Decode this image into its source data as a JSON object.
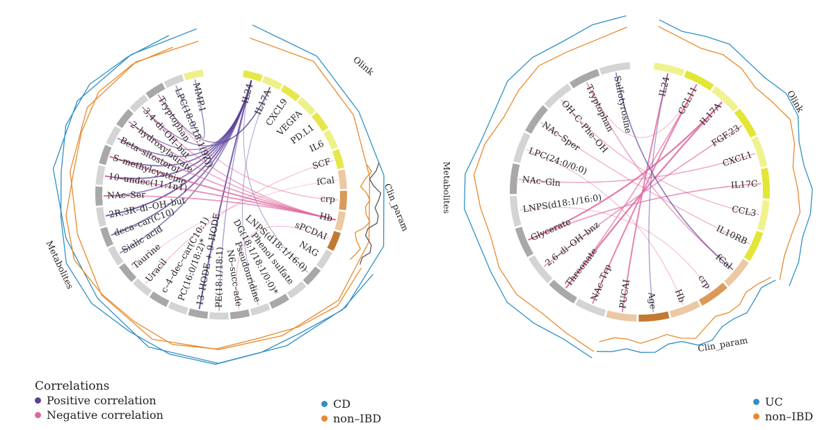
{
  "legend": {
    "title": "Correlations",
    "positive_label": "Positive correlation",
    "negative_label": "Negative correlation",
    "positive_color": "#5b3f99",
    "negative_color": "#e0689f"
  },
  "colors": {
    "cd": "#2f8fc4",
    "non_ibd": "#e8892a",
    "uc": "#2f8fc4",
    "clin_line": "#555555"
  },
  "chart_data": [
    {
      "type": "chord",
      "title": "",
      "cohort_legend": [
        {
          "label": "CD",
          "color": "#2f8fc4"
        },
        {
          "label": "non–IBD",
          "color": "#e8892a"
        }
      ],
      "group_labels": {
        "olink": "Olink",
        "clin": "Clin_param",
        "metab": "Metabolites"
      },
      "sectors": [
        {
          "label": "IL24",
          "group": "olink",
          "color": "#e6e84a"
        },
        {
          "label": "IL17A",
          "group": "olink",
          "color": "#eef08a"
        },
        {
          "label": "CXCL9",
          "group": "olink",
          "color": "#e6e84a"
        },
        {
          "label": "VEGFA",
          "group": "olink",
          "color": "#eef08a"
        },
        {
          "label": "PD.L1",
          "group": "olink",
          "color": "#e6e84a"
        },
        {
          "label": "IL6",
          "group": "olink",
          "color": "#eef08a"
        },
        {
          "label": "SCF",
          "group": "olink",
          "color": "#e6e84a"
        },
        {
          "label": "fCal",
          "group": "clin",
          "color": "#ecc9a3"
        },
        {
          "label": "crp",
          "group": "clin",
          "color": "#d99a5a"
        },
        {
          "label": "Hb",
          "group": "clin",
          "color": "#ecc9a3"
        },
        {
          "label": "sPCDAI",
          "group": "clin",
          "color": "#c27a32"
        },
        {
          "label": "NAG",
          "group": "metab",
          "color": "#d4d4d4"
        },
        {
          "label": "LNPS(d18:1/16:0)",
          "group": "metab",
          "color": "#a8a8a8"
        },
        {
          "label": "Phenol sulfate",
          "group": "metab",
          "color": "#d4d4d4"
        },
        {
          "label": "DG(18:1/18:1/0:0)*",
          "group": "metab",
          "color": "#a8a8a8"
        },
        {
          "label": "Pseudouridine",
          "group": "metab",
          "color": "#d4d4d4"
        },
        {
          "label": "N6–succ–ade",
          "group": "metab",
          "color": "#a8a8a8"
        },
        {
          "label": "PE(18:1/18:1)",
          "group": "metab",
          "color": "#d4d4d4"
        },
        {
          "label": "13–HODE + 9–HODE",
          "group": "metab",
          "color": "#a8a8a8"
        },
        {
          "label": "PC(16:0/18:2)*",
          "group": "metab",
          "color": "#d4d4d4"
        },
        {
          "label": "c–4–dec–car(C10:1)",
          "group": "metab",
          "color": "#a8a8a8"
        },
        {
          "label": "Uracil",
          "group": "metab",
          "color": "#d4d4d4"
        },
        {
          "label": "Taurine",
          "group": "metab",
          "color": "#a8a8a8"
        },
        {
          "label": "Sialic acid",
          "group": "metab",
          "color": "#d4d4d4"
        },
        {
          "label": "deca–car(C10)",
          "group": "metab",
          "color": "#a8a8a8"
        },
        {
          "label": "2R,3R–di–OH–but",
          "group": "metab",
          "color": "#d4d4d4"
        },
        {
          "label": "NAc–Ser",
          "group": "metab",
          "color": "#a8a8a8"
        },
        {
          "label": "10–undec(11:1n1)",
          "group": "metab",
          "color": "#d4d4d4"
        },
        {
          "label": "S–methylcysteine",
          "group": "metab",
          "color": "#a8a8a8"
        },
        {
          "label": "Beta–sitosterol",
          "group": "metab",
          "color": "#d4d4d4"
        },
        {
          "label": "2–hydroxylaurate",
          "group": "metab",
          "color": "#a8a8a8"
        },
        {
          "label": "3,4–di–OH–but",
          "group": "metab",
          "color": "#d4d4d4"
        },
        {
          "label": "Tryptophan",
          "group": "metab",
          "color": "#a8a8a8"
        },
        {
          "label": "LPC(18:0/18:1(9Z))",
          "group": "metab",
          "color": "#d4d4d4"
        },
        {
          "label": "MMP.1",
          "group": "olink",
          "color": "#eef08a"
        }
      ],
      "links": [
        {
          "source": "IL24",
          "target": "2R,3R–di–OH–but",
          "sign": "positive",
          "strength": 0.8
        },
        {
          "source": "IL24",
          "target": "10–undec(11:1n1)",
          "sign": "positive",
          "strength": 0.7
        },
        {
          "source": "IL24",
          "target": "S–methylcysteine",
          "sign": "positive",
          "strength": 0.7
        },
        {
          "source": "IL24",
          "target": "deca–car(C10)",
          "sign": "positive",
          "strength": 0.7
        },
        {
          "source": "IL24",
          "target": "Sialic acid",
          "sign": "positive",
          "strength": 0.6
        },
        {
          "source": "IL24",
          "target": "Beta–sitosterol",
          "sign": "positive",
          "strength": 0.6
        },
        {
          "source": "IL24",
          "target": "NAc–Ser",
          "sign": "positive",
          "strength": 0.6
        },
        {
          "source": "IL24",
          "target": "13–HODE + 9–HODE",
          "sign": "positive",
          "strength": 0.8
        },
        {
          "source": "IL24",
          "target": "2–hydroxylaurate",
          "sign": "positive",
          "strength": 0.5
        },
        {
          "source": "IL17A",
          "target": "3,4–di–OH–but",
          "sign": "positive",
          "strength": 0.5
        },
        {
          "source": "IL17A",
          "target": "Tryptophan",
          "sign": "positive",
          "strength": 0.5
        },
        {
          "source": "MMP.1",
          "target": "LPC(18:0/18:1(9Z))",
          "sign": "positive",
          "strength": 0.5
        },
        {
          "source": "IL24",
          "target": "PE(18:1/18:1)",
          "sign": "positive",
          "strength": 0.4
        },
        {
          "source": "IL24",
          "target": "LNPS(d18:1/16:0)",
          "sign": "positive",
          "strength": 0.3
        },
        {
          "source": "IL17A",
          "target": "Pseudouridine",
          "sign": "positive",
          "strength": 0.3
        },
        {
          "source": "Hb",
          "target": "S–methylcysteine",
          "sign": "negative",
          "strength": 0.8
        },
        {
          "source": "Hb",
          "target": "10–undec(11:1n1)",
          "sign": "negative",
          "strength": 0.7
        },
        {
          "source": "Hb",
          "target": "NAc–Ser",
          "sign": "negative",
          "strength": 0.6
        },
        {
          "source": "Hb",
          "target": "Beta–sitosterol",
          "sign": "negative",
          "strength": 0.6
        },
        {
          "source": "Hb",
          "target": "2–hydroxylaurate",
          "sign": "negative",
          "strength": 0.5
        },
        {
          "source": "Hb",
          "target": "3,4–di–OH–but",
          "sign": "negative",
          "strength": 0.5
        },
        {
          "source": "crp",
          "target": "Tryptophan",
          "sign": "negative",
          "strength": 0.4
        },
        {
          "source": "SCF",
          "target": "Uracil",
          "sign": "negative",
          "strength": 0.3
        },
        {
          "source": "fCal",
          "target": "Taurine",
          "sign": "negative",
          "strength": 0.2
        },
        {
          "source": "sPCDAI",
          "target": "N6–succ–ade",
          "sign": "negative",
          "strength": 0.3
        }
      ]
    },
    {
      "type": "chord",
      "title": "",
      "cohort_legend": [
        {
          "label": "UC",
          "color": "#2f8fc4"
        },
        {
          "label": "non–IBD",
          "color": "#e8892a"
        }
      ],
      "group_labels": {
        "olink": "Olink",
        "clin": "Clin_param",
        "metab": "Metabolites"
      },
      "sectors": [
        {
          "label": "IL24",
          "group": "olink",
          "color": "#f0f28f"
        },
        {
          "label": "CCL11",
          "group": "olink",
          "color": "#e3e635"
        },
        {
          "label": "IL17A",
          "group": "olink",
          "color": "#f0f28f"
        },
        {
          "label": "FGF.23",
          "group": "olink",
          "color": "#e3e635"
        },
        {
          "label": "CXCL1",
          "group": "olink",
          "color": "#f0f28f"
        },
        {
          "label": "IL17C",
          "group": "olink",
          "color": "#e3e635"
        },
        {
          "label": "CCL3",
          "group": "olink",
          "color": "#f0f28f"
        },
        {
          "label": "IL10RB",
          "group": "olink",
          "color": "#e3e635"
        },
        {
          "label": "fCal",
          "group": "clin",
          "color": "#ecc9a3"
        },
        {
          "label": "crp",
          "group": "clin",
          "color": "#d99a5a"
        },
        {
          "label": "Hb",
          "group": "clin",
          "color": "#ecc9a3"
        },
        {
          "label": "Age",
          "group": "clin",
          "color": "#c27a32"
        },
        {
          "label": "PUCAI",
          "group": "clin",
          "color": "#ecc9a3"
        },
        {
          "label": "NAc–Trp",
          "group": "metab",
          "color": "#d4d4d4"
        },
        {
          "label": "Threonate",
          "group": "metab",
          "color": "#a8a8a8"
        },
        {
          "label": "2,6–di–OH–bnz",
          "group": "metab",
          "color": "#d4d4d4"
        },
        {
          "label": "Glycerate",
          "group": "metab",
          "color": "#a8a8a8"
        },
        {
          "label": "LNPS(d18:1/16:0)",
          "group": "metab",
          "color": "#d4d4d4"
        },
        {
          "label": "NAc–Gln",
          "group": "metab",
          "color": "#a8a8a8"
        },
        {
          "label": "LPC(24:0/0:0)",
          "group": "metab",
          "color": "#d4d4d4"
        },
        {
          "label": "NAc–Sper",
          "group": "metab",
          "color": "#a8a8a8"
        },
        {
          "label": "OH–C–Phe–OH",
          "group": "metab",
          "color": "#d4d4d4"
        },
        {
          "label": "Tryptophan",
          "group": "metab",
          "color": "#a8a8a8"
        },
        {
          "label": "Sulfotyrosine",
          "group": "metab",
          "color": "#d4d4d4"
        }
      ],
      "links": [
        {
          "source": "Glycerate",
          "target": "IL17A",
          "sign": "negative",
          "strength": 0.9
        },
        {
          "source": "Threonate",
          "target": "IL17A",
          "sign": "negative",
          "strength": 0.9
        },
        {
          "source": "NAc–Trp",
          "target": "CCL11",
          "sign": "negative",
          "strength": 0.8
        },
        {
          "source": "PUCAI",
          "target": "IL24",
          "sign": "negative",
          "strength": 0.8
        },
        {
          "source": "Glycerate",
          "target": "IL17C",
          "sign": "negative",
          "strength": 0.6
        },
        {
          "source": "2,6–di–OH–bnz",
          "target": "FGF.23",
          "sign": "negative",
          "strength": 0.6
        },
        {
          "source": "NAc–Gln",
          "target": "CXCL1",
          "sign": "negative",
          "strength": 0.5
        },
        {
          "source": "Tryptophan",
          "target": "fCal",
          "sign": "negative",
          "strength": 0.5
        },
        {
          "source": "OH–C–Phe–OH",
          "target": "CCL3",
          "sign": "negative",
          "strength": 0.4
        },
        {
          "source": "NAc–Sper",
          "target": "IL10RB",
          "sign": "negative",
          "strength": 0.4
        },
        {
          "source": "LNPS(d18:1/16:0)",
          "target": "crp",
          "sign": "negative",
          "strength": 0.3
        },
        {
          "source": "LPC(24:0/0:0)",
          "target": "Hb",
          "sign": "negative",
          "strength": 0.3
        },
        {
          "source": "Threonate",
          "target": "CCL11",
          "sign": "negative",
          "strength": 0.6
        },
        {
          "source": "Sulfotyrosine",
          "target": "fCal",
          "sign": "positive",
          "strength": 0.6
        },
        {
          "source": "IL24",
          "target": "Age",
          "sign": "positive",
          "strength": 0.4
        },
        {
          "source": "Tryptophan",
          "target": "CCL11",
          "sign": "negative",
          "strength": 0.3
        }
      ]
    }
  ]
}
